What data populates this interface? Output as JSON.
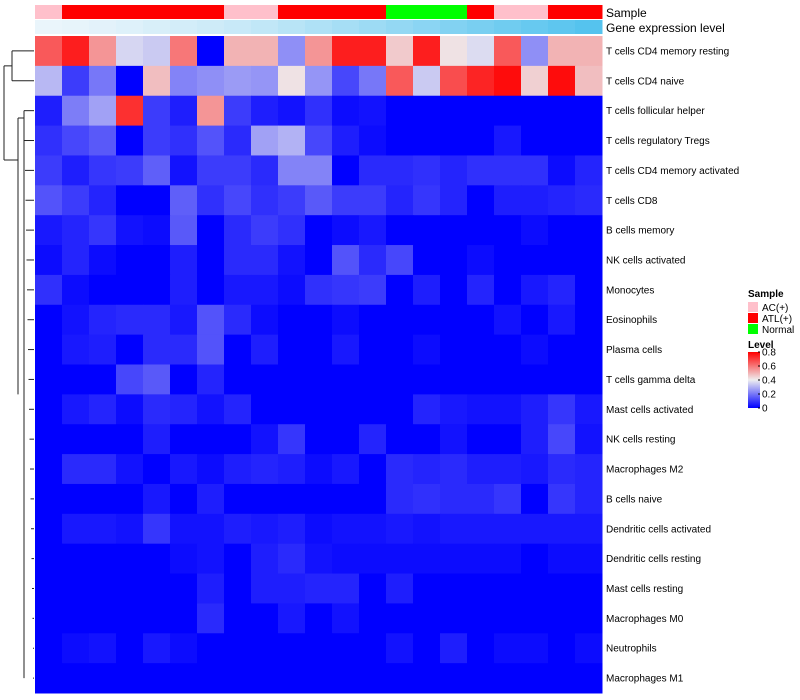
{
  "chart_data": {
    "type": "heatmap",
    "annotation_titles": {
      "sample": "Sample",
      "expression": "Gene expression level"
    },
    "sample_groups": [
      "AC(+)",
      "ATL(+)",
      "ATL(+)",
      "ATL(+)",
      "ATL(+)",
      "ATL(+)",
      "ATL(+)",
      "AC(+)",
      "AC(+)",
      "ATL(+)",
      "ATL(+)",
      "ATL(+)",
      "ATL(+)",
      "Normal",
      "Normal",
      "Normal",
      "ATL(+)",
      "AC(+)",
      "AC(+)",
      "ATL(+)",
      "ATL(+)"
    ],
    "expression_level": [
      0.02,
      0.04,
      0.06,
      0.09,
      0.12,
      0.15,
      0.18,
      0.21,
      0.25,
      0.3,
      0.35,
      0.4,
      0.45,
      0.5,
      0.55,
      0.6,
      0.65,
      0.7,
      0.75,
      0.8,
      0.85
    ],
    "rows": [
      "T cells CD4 memory resting",
      "T cells CD4 naive",
      "T cells follicular helper",
      "T cells regulatory  Tregs",
      "T cells CD4 memory activated",
      "T cells CD8",
      "B cells memory",
      "NK cells activated",
      "Monocytes",
      "Eosinophils",
      "Plasma cells",
      "T cells gamma delta",
      "Mast cells activated",
      "NK cells resting",
      "Macrophages M2",
      "B cells naive",
      "Dendritic cells activated",
      "Dendritic cells resting",
      "Mast cells resting",
      "Macrophages M0",
      "Neutrophils",
      "Macrophages M1"
    ],
    "values": [
      [
        0.65,
        0.75,
        0.55,
        0.36,
        0.34,
        0.6,
        0.0,
        0.5,
        0.5,
        0.24,
        0.55,
        0.75,
        0.75,
        0.46,
        0.75,
        0.42,
        0.37,
        0.65,
        0.24,
        0.5,
        0.5
      ],
      [
        0.31,
        0.1,
        0.2,
        0.0,
        0.48,
        0.22,
        0.24,
        0.26,
        0.25,
        0.42,
        0.25,
        0.12,
        0.2,
        0.65,
        0.34,
        0.67,
        0.74,
        0.78,
        0.45,
        0.78,
        0.48
      ],
      [
        0.05,
        0.21,
        0.27,
        0.72,
        0.1,
        0.05,
        0.55,
        0.1,
        0.05,
        0.03,
        0.08,
        0.02,
        0.03,
        0.0,
        0.0,
        0.0,
        0.0,
        0.0,
        0.0,
        0.0,
        0.0
      ],
      [
        0.08,
        0.12,
        0.15,
        0.0,
        0.1,
        0.08,
        0.14,
        0.07,
        0.27,
        0.3,
        0.12,
        0.05,
        0.02,
        0.0,
        0.0,
        0.0,
        0.0,
        0.04,
        0.0,
        0.0,
        0.0
      ],
      [
        0.1,
        0.05,
        0.09,
        0.1,
        0.16,
        0.03,
        0.1,
        0.1,
        0.07,
        0.22,
        0.22,
        0.0,
        0.07,
        0.07,
        0.08,
        0.06,
        0.08,
        0.08,
        0.08,
        0.02,
        0.06
      ],
      [
        0.14,
        0.1,
        0.06,
        0.0,
        0.0,
        0.16,
        0.08,
        0.12,
        0.08,
        0.1,
        0.15,
        0.1,
        0.1,
        0.06,
        0.09,
        0.06,
        0.0,
        0.05,
        0.05,
        0.06,
        0.07
      ],
      [
        0.04,
        0.06,
        0.09,
        0.03,
        0.02,
        0.15,
        0.0,
        0.07,
        0.1,
        0.08,
        0.0,
        0.02,
        0.04,
        0.0,
        0.0,
        0.0,
        0.0,
        0.0,
        0.02,
        0.0,
        0.0
      ],
      [
        0.02,
        0.06,
        0.02,
        0.0,
        0.0,
        0.05,
        0.0,
        0.07,
        0.07,
        0.03,
        0.0,
        0.14,
        0.07,
        0.12,
        0.0,
        0.0,
        0.02,
        0.0,
        0.0,
        0.0,
        0.0
      ],
      [
        0.08,
        0.02,
        0.0,
        0.0,
        0.0,
        0.05,
        0.0,
        0.04,
        0.04,
        0.02,
        0.08,
        0.09,
        0.1,
        0.0,
        0.05,
        0.0,
        0.06,
        0.0,
        0.04,
        0.06,
        0.0
      ],
      [
        0.0,
        0.03,
        0.06,
        0.07,
        0.07,
        0.04,
        0.14,
        0.07,
        0.02,
        0.0,
        0.0,
        0.02,
        0.0,
        0.0,
        0.0,
        0.0,
        0.0,
        0.03,
        0.0,
        0.04,
        0.0
      ],
      [
        0.0,
        0.04,
        0.05,
        0.0,
        0.07,
        0.07,
        0.14,
        0.0,
        0.05,
        0.0,
        0.0,
        0.04,
        0.0,
        0.0,
        0.02,
        0.0,
        0.0,
        0.0,
        0.02,
        0.0,
        0.0
      ],
      [
        0.0,
        0.0,
        0.0,
        0.12,
        0.15,
        0.0,
        0.06,
        0.0,
        0.0,
        0.0,
        0.0,
        0.0,
        0.0,
        0.0,
        0.0,
        0.0,
        0.0,
        0.0,
        0.0,
        0.0,
        0.0
      ],
      [
        0.0,
        0.04,
        0.06,
        0.02,
        0.07,
        0.06,
        0.03,
        0.06,
        0.0,
        0.0,
        0.0,
        0.0,
        0.0,
        0.0,
        0.06,
        0.04,
        0.03,
        0.03,
        0.05,
        0.09,
        0.04
      ],
      [
        0.0,
        0.0,
        0.0,
        0.0,
        0.05,
        0.0,
        0.0,
        0.0,
        0.03,
        0.09,
        0.0,
        0.0,
        0.06,
        0.0,
        0.0,
        0.03,
        0.0,
        0.0,
        0.05,
        0.12,
        0.03
      ],
      [
        0.0,
        0.07,
        0.07,
        0.03,
        0.0,
        0.04,
        0.02,
        0.05,
        0.06,
        0.05,
        0.02,
        0.04,
        0.0,
        0.07,
        0.06,
        0.07,
        0.05,
        0.05,
        0.04,
        0.07,
        0.06
      ],
      [
        0.0,
        0.0,
        0.0,
        0.0,
        0.04,
        0.0,
        0.05,
        0.0,
        0.0,
        0.0,
        0.0,
        0.0,
        0.0,
        0.07,
        0.08,
        0.07,
        0.07,
        0.09,
        0.0,
        0.09,
        0.06
      ],
      [
        0.0,
        0.04,
        0.04,
        0.03,
        0.09,
        0.03,
        0.03,
        0.05,
        0.04,
        0.05,
        0.02,
        0.03,
        0.03,
        0.04,
        0.03,
        0.04,
        0.04,
        0.04,
        0.04,
        0.04,
        0.04
      ],
      [
        0.0,
        0.0,
        0.0,
        0.0,
        0.0,
        0.02,
        0.03,
        0.0,
        0.05,
        0.07,
        0.03,
        0.02,
        0.02,
        0.02,
        0.02,
        0.02,
        0.02,
        0.02,
        0.0,
        0.02,
        0.02
      ],
      [
        0.0,
        0.0,
        0.0,
        0.0,
        0.0,
        0.0,
        0.05,
        0.0,
        0.05,
        0.05,
        0.06,
        0.06,
        0.0,
        0.05,
        0.0,
        0.0,
        0.0,
        0.0,
        0.0,
        0.0,
        0.0
      ],
      [
        0.0,
        0.0,
        0.0,
        0.0,
        0.0,
        0.0,
        0.07,
        0.0,
        0.0,
        0.04,
        0.0,
        0.03,
        0.0,
        0.0,
        0.0,
        0.0,
        0.0,
        0.0,
        0.0,
        0.0,
        0.0
      ],
      [
        0.0,
        0.02,
        0.03,
        0.0,
        0.04,
        0.02,
        0.0,
        0.0,
        0.0,
        0.0,
        0.0,
        0.0,
        0.0,
        0.03,
        0.0,
        0.05,
        0.0,
        0.02,
        0.02,
        0.0,
        0.02
      ],
      [
        0.0,
        0.0,
        0.0,
        0.0,
        0.0,
        0.0,
        0.0,
        0.0,
        0.0,
        0.0,
        0.0,
        0.0,
        0.0,
        0.0,
        0.0,
        0.0,
        0.0,
        0.0,
        0.0,
        0.0,
        0.0
      ]
    ],
    "legend": {
      "sample_title": "Sample",
      "groups": [
        {
          "label": "AC(+)",
          "color": "#ffc0cb"
        },
        {
          "label": "ATL(+)",
          "color": "#ff0000"
        },
        {
          "label": "Normal",
          "color": "#00ff00"
        }
      ],
      "level_title": "Level",
      "level_ticks": [
        "0.8",
        "0.6",
        "0.4",
        "0.2",
        "0"
      ],
      "level_tick_values": [
        0.8,
        0.6,
        0.4,
        0.2,
        0
      ],
      "level_range": [
        0,
        0.8
      ]
    },
    "colors": {
      "low": "#0000ff",
      "mid": "#eeeef0",
      "high": "#ff0000",
      "expr_low": "#eef6fb",
      "expr_high": "#55c3ee"
    },
    "color_scale_midpoint": 0.4
  }
}
